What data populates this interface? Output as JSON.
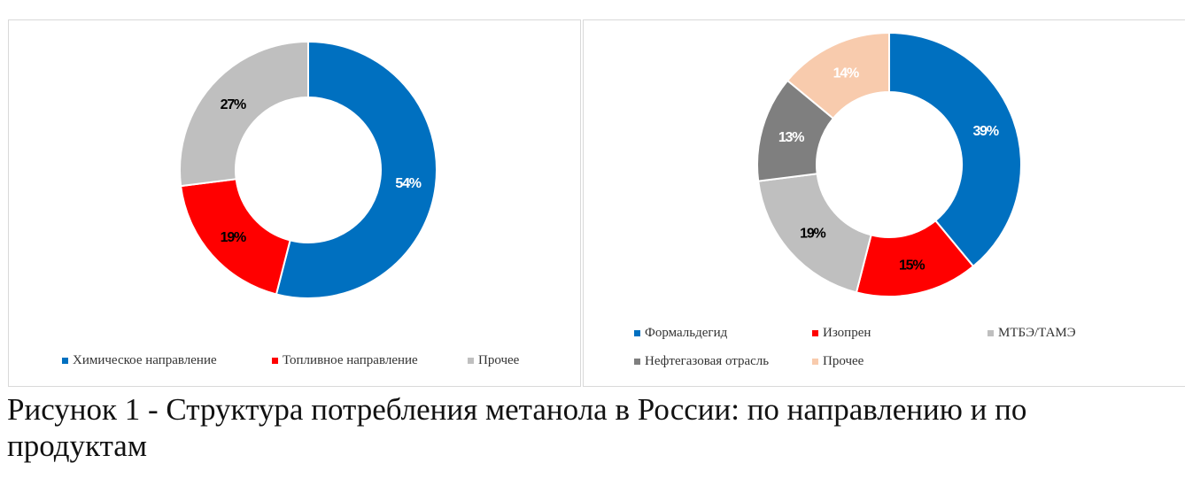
{
  "chart_data": [
    {
      "type": "pie",
      "variant": "donut",
      "categories": [
        "Химическое направление",
        "Топливное направление",
        "Прочее"
      ],
      "values": [
        54,
        19,
        27
      ],
      "labels": [
        "54%",
        "19%",
        "27%"
      ],
      "colors": [
        "#0070c0",
        "#ff0000",
        "#bfbfbf"
      ],
      "label_colors": [
        "#ffffff",
        "#000000",
        "#000000"
      ],
      "legend": "bottom"
    },
    {
      "type": "pie",
      "variant": "donut",
      "categories": [
        "Формальдегид",
        "Изопрен",
        "МТБЭ/ТАМЭ",
        "Нефтегазовая отрасль",
        "Прочее"
      ],
      "values": [
        39,
        15,
        19,
        13,
        14
      ],
      "labels": [
        "39%",
        "15%",
        "19%",
        "13%",
        "14%"
      ],
      "colors": [
        "#0070c0",
        "#ff0000",
        "#bfbfbf",
        "#7f7f7f",
        "#f8cbad"
      ],
      "label_colors": [
        "#ffffff",
        "#000000",
        "#000000",
        "#ffffff",
        "#ffffff"
      ],
      "legend": "bottom"
    }
  ],
  "caption": {
    "line1": "Рисунок 1 - Структура потребления метанола в России: по направлению и по",
    "line2": "продуктам"
  }
}
